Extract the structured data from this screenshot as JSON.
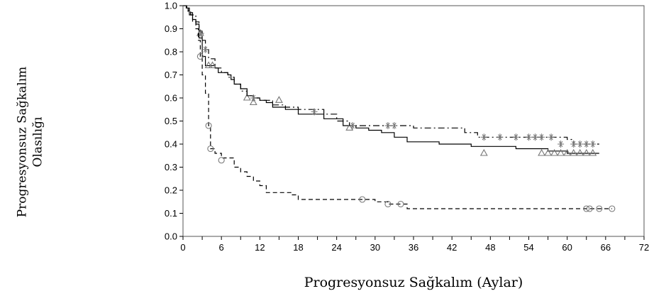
{
  "chart_data": {
    "type": "line",
    "title": "",
    "xlabel": "Progresyonsuz Sağkalım (Aylar)",
    "ylabel_line1": "Progresyonsuz Sağkalım",
    "ylabel_line2": "Olasılığı",
    "xlim": [
      0,
      72
    ],
    "ylim": [
      0,
      1
    ],
    "xticks": [
      "0",
      "3",
      "6",
      "9",
      "12",
      "15",
      "18",
      "21",
      "24",
      "27",
      "30",
      "33",
      "36",
      "39",
      "42",
      "45",
      "48",
      "51",
      "54",
      "57",
      "60",
      "63",
      "66",
      "69",
      "72"
    ],
    "yticks": [
      "0.0",
      "0.1",
      "0.2",
      "0.3",
      "0.4",
      "0.5",
      "0.6",
      "0.7",
      "0.8",
      "0.9",
      "1.0"
    ],
    "xticks_labeled": [
      "0",
      "6",
      "12",
      "18",
      "24",
      "30",
      "36",
      "42",
      "48",
      "54",
      "60",
      "66",
      "72"
    ],
    "grid": false,
    "legend": "none",
    "series": [
      {
        "style": "solid",
        "color": "#000000",
        "marker": "triangle",
        "points": [
          [
            0,
            1.0
          ],
          [
            0.5,
            0.99
          ],
          [
            1,
            0.96
          ],
          [
            1.5,
            0.94
          ],
          [
            2,
            0.92
          ],
          [
            2.5,
            0.86
          ],
          [
            3,
            0.78
          ],
          [
            3.5,
            0.74
          ],
          [
            5,
            0.73
          ],
          [
            5.5,
            0.71
          ],
          [
            7,
            0.7
          ],
          [
            7.5,
            0.68
          ],
          [
            8,
            0.66
          ],
          [
            9,
            0.64
          ],
          [
            10,
            0.61
          ],
          [
            11,
            0.6
          ],
          [
            12,
            0.59
          ],
          [
            13,
            0.58
          ],
          [
            14,
            0.56
          ],
          [
            16,
            0.55
          ],
          [
            18,
            0.53
          ],
          [
            20,
            0.53
          ],
          [
            22,
            0.51
          ],
          [
            25,
            0.48
          ],
          [
            27,
            0.47
          ],
          [
            29,
            0.46
          ],
          [
            31,
            0.45
          ],
          [
            33,
            0.43
          ],
          [
            35,
            0.41
          ],
          [
            40,
            0.4
          ],
          [
            45,
            0.39
          ],
          [
            52,
            0.38
          ],
          [
            57,
            0.37
          ],
          [
            60,
            0.36
          ],
          [
            65,
            0.36
          ]
        ],
        "markers": [
          [
            2.7,
            0.88
          ],
          [
            4,
            0.74
          ],
          [
            4.6,
            0.74
          ],
          [
            10,
            0.6
          ],
          [
            11,
            0.58
          ],
          [
            15,
            0.59
          ],
          [
            26,
            0.47
          ],
          [
            47,
            0.36
          ],
          [
            56,
            0.36
          ],
          [
            57,
            0.36
          ],
          [
            58,
            0.36
          ],
          [
            59,
            0.36
          ],
          [
            60,
            0.36
          ],
          [
            61,
            0.36
          ],
          [
            62,
            0.36
          ],
          [
            63,
            0.36
          ],
          [
            64,
            0.36
          ]
        ]
      },
      {
        "style": "dashdot",
        "color": "#000000",
        "marker": "star",
        "points": [
          [
            0,
            1.0
          ],
          [
            0.6,
            0.98
          ],
          [
            1.2,
            0.96
          ],
          [
            2,
            0.93
          ],
          [
            2.5,
            0.89
          ],
          [
            3,
            0.85
          ],
          [
            3.5,
            0.81
          ],
          [
            4,
            0.77
          ],
          [
            5,
            0.73
          ],
          [
            6,
            0.71
          ],
          [
            7,
            0.69
          ],
          [
            8,
            0.66
          ],
          [
            9,
            0.63
          ],
          [
            10,
            0.61
          ],
          [
            11,
            0.6
          ],
          [
            12,
            0.59
          ],
          [
            14,
            0.57
          ],
          [
            16,
            0.56
          ],
          [
            18,
            0.55
          ],
          [
            22,
            0.53
          ],
          [
            24,
            0.5
          ],
          [
            26,
            0.48
          ],
          [
            33,
            0.48
          ],
          [
            36,
            0.47
          ],
          [
            40,
            0.47
          ],
          [
            44,
            0.45
          ],
          [
            46,
            0.43
          ],
          [
            50,
            0.43
          ],
          [
            60,
            0.42
          ],
          [
            61,
            0.4
          ],
          [
            65,
            0.4
          ]
        ],
        "markers": [
          [
            2.8,
            0.88
          ],
          [
            3.5,
            0.81
          ],
          [
            11,
            0.6
          ],
          [
            20.5,
            0.54
          ],
          [
            26.5,
            0.48
          ],
          [
            32,
            0.48
          ],
          [
            33,
            0.48
          ],
          [
            47,
            0.43
          ],
          [
            49.5,
            0.43
          ],
          [
            52,
            0.43
          ],
          [
            54,
            0.43
          ],
          [
            55,
            0.43
          ],
          [
            56,
            0.43
          ],
          [
            57.5,
            0.43
          ],
          [
            59,
            0.4
          ],
          [
            61,
            0.4
          ],
          [
            62,
            0.4
          ],
          [
            63,
            0.4
          ],
          [
            64,
            0.4
          ]
        ]
      },
      {
        "style": "dashed",
        "color": "#000000",
        "marker": "circle",
        "points": [
          [
            0,
            1.0
          ],
          [
            0.8,
            0.97
          ],
          [
            1.5,
            0.93
          ],
          [
            2,
            0.9
          ],
          [
            2.4,
            0.85
          ],
          [
            2.7,
            0.78
          ],
          [
            3,
            0.7
          ],
          [
            3.5,
            0.62
          ],
          [
            4,
            0.48
          ],
          [
            4.3,
            0.38
          ],
          [
            5,
            0.36
          ],
          [
            6,
            0.34
          ],
          [
            8,
            0.3
          ],
          [
            9,
            0.28
          ],
          [
            10,
            0.26
          ],
          [
            11,
            0.24
          ],
          [
            12,
            0.22
          ],
          [
            13,
            0.19
          ],
          [
            17,
            0.18
          ],
          [
            18,
            0.16
          ],
          [
            28,
            0.16
          ],
          [
            30,
            0.15
          ],
          [
            32,
            0.14
          ],
          [
            35,
            0.12
          ],
          [
            67,
            0.12
          ]
        ],
        "markers": [
          [
            2.7,
            0.78
          ],
          [
            4,
            0.48
          ],
          [
            4.3,
            0.38
          ],
          [
            6,
            0.33
          ],
          [
            28,
            0.16
          ],
          [
            32,
            0.14
          ],
          [
            34,
            0.14
          ],
          [
            63,
            0.12
          ],
          [
            63.5,
            0.12
          ],
          [
            65,
            0.12
          ],
          [
            67,
            0.12
          ]
        ]
      }
    ]
  }
}
